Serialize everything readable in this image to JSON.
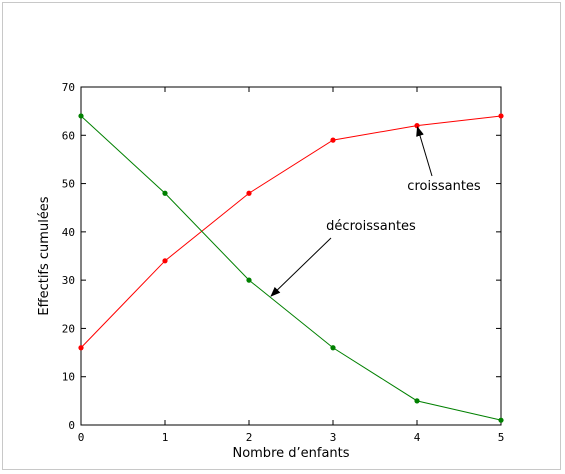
{
  "chart_data": {
    "type": "line",
    "x": [
      0,
      1,
      2,
      3,
      4,
      5
    ],
    "series": [
      {
        "name": "croissantes",
        "values": [
          16,
          34,
          48,
          59,
          62,
          64
        ],
        "color": "#ff0000"
      },
      {
        "name": "décroissantes",
        "values": [
          64,
          48,
          30,
          16,
          5,
          1
        ],
        "color": "#008000"
      }
    ],
    "xlabel": "Nombre d’enfants",
    "ylabel": "Effectifs cumulées",
    "xlim": [
      0,
      5
    ],
    "ylim": [
      0,
      70
    ],
    "xticks": [
      0,
      1,
      2,
      3,
      4,
      5
    ],
    "yticks": [
      0,
      10,
      20,
      30,
      40,
      50,
      60,
      70
    ],
    "grid": false,
    "annotations": [
      {
        "text": "croissantes",
        "series_index": 0,
        "arrow_to": [
          4,
          62
        ]
      },
      {
        "text": "décroissantes",
        "series_index": 1,
        "arrow_to": [
          2.25,
          26.5
        ]
      }
    ]
  }
}
